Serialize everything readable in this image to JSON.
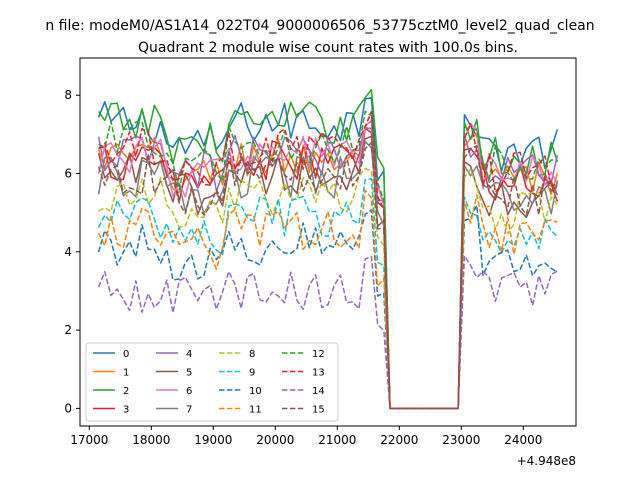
{
  "figure": {
    "suptitle": "n file: modeM0/AS1A14_022T04_9000006506_53775cztM0_level2_quad_clean",
    "title": "Quadrant 2 module wise count rates with 100.0s bins.",
    "offset_label": "+4.948e8"
  },
  "chart_data": {
    "type": "line",
    "title": "Quadrant 2 module wise count rates with 100.0s bins.",
    "xlabel": "",
    "ylabel": "",
    "xlim": [
      16850,
      24850
    ],
    "ylim": [
      -0.45,
      8.95
    ],
    "x_offset": 494800000,
    "xticks": [
      17000,
      18000,
      19000,
      20000,
      21000,
      22000,
      23000,
      24000
    ],
    "xtick_labels": [
      "17000",
      "18000",
      "19000",
      "20000",
      "21000",
      "22000",
      "23000",
      "24000"
    ],
    "yticks": [
      0,
      2,
      4,
      6,
      8
    ],
    "ytick_labels": [
      "0",
      "2",
      "4",
      "6",
      "8"
    ],
    "grid": false,
    "legend": {
      "placement": "lower-left",
      "columns": 4
    },
    "segments": [
      {
        "x_start": 17150,
        "x_end": 21750,
        "step": 100
      },
      {
        "x_start": 23050,
        "x_end": 24550,
        "step": 100
      }
    ],
    "gap": {
      "x_start": 21850,
      "x_end": 22950,
      "value": 0
    },
    "series": [
      {
        "name": "0",
        "color": "#1f77b4",
        "style": "solid",
        "level": 7.3,
        "dip": 6.7,
        "tail": 6.6
      },
      {
        "name": "1",
        "color": "#ff7f0e",
        "style": "solid",
        "level": 6.4,
        "dip": 5.9,
        "tail": 5.8
      },
      {
        "name": "2",
        "color": "#2ca02c",
        "style": "solid",
        "level": 7.3,
        "dip": 6.8,
        "tail": 6.4
      },
      {
        "name": "3",
        "color": "#d62728",
        "style": "solid",
        "level": 6.3,
        "dip": 5.8,
        "tail": 5.7
      },
      {
        "name": "4",
        "color": "#9467bd",
        "style": "solid",
        "level": 6.5,
        "dip": 6.0,
        "tail": 6.1
      },
      {
        "name": "5",
        "color": "#8c564b",
        "style": "solid",
        "level": 6.0,
        "dip": 5.5,
        "tail": 5.4
      },
      {
        "name": "6",
        "color": "#e377c2",
        "style": "solid",
        "level": 6.5,
        "dip": 5.9,
        "tail": 6.0
      },
      {
        "name": "7",
        "color": "#7f7f7f",
        "style": "solid",
        "level": 5.9,
        "dip": 5.4,
        "tail": 5.3
      },
      {
        "name": "8",
        "color": "#bcbd22",
        "style": "dashed",
        "level": 5.4,
        "dip": 4.9,
        "tail": 5.0
      },
      {
        "name": "9",
        "color": "#17becf",
        "style": "dashed",
        "level": 4.9,
        "dip": 4.4,
        "tail": 4.5
      },
      {
        "name": "10",
        "color": "#1f77b4",
        "style": "dashed",
        "level": 4.2,
        "dip": 3.7,
        "tail": 3.9
      },
      {
        "name": "11",
        "color": "#ff7f0e",
        "style": "dashed",
        "level": 4.6,
        "dip": 4.1,
        "tail": 4.4
      },
      {
        "name": "12",
        "color": "#2ca02c",
        "style": "dashed",
        "level": 6.8,
        "dip": 6.1,
        "tail": 6.3
      },
      {
        "name": "13",
        "color": "#d62728",
        "style": "dashed",
        "level": 6.6,
        "dip": 5.9,
        "tail": 6.0
      },
      {
        "name": "14",
        "color": "#9467bd",
        "style": "dashed",
        "level": 3.0,
        "dip": 2.8,
        "tail": 3.0
      },
      {
        "name": "15",
        "color": "#8c564b",
        "style": "dashed",
        "level": 6.0,
        "dip": 5.4,
        "tail": 5.5
      }
    ]
  }
}
